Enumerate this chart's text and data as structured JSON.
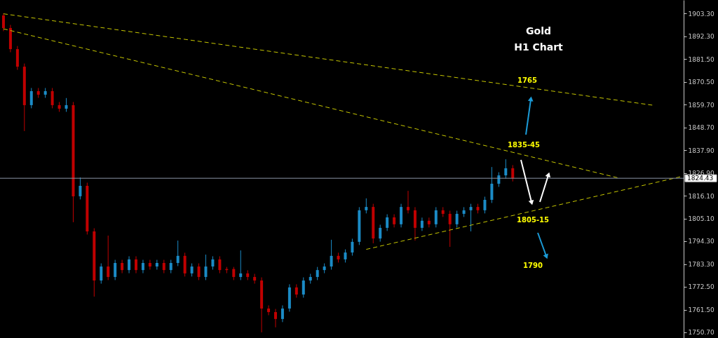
{
  "chart_data": {
    "type": "candlestick",
    "title": "Gold",
    "subtitle": "H1 Chart",
    "categories": [
      null,
      null,
      null,
      null,
      null,
      null,
      null,
      null,
      null,
      null,
      null,
      null,
      null,
      null,
      null,
      null,
      null,
      null,
      null,
      null,
      null,
      null,
      null,
      null,
      null,
      null,
      null,
      null,
      null,
      null,
      null,
      null,
      null,
      null,
      null,
      null,
      null,
      null,
      null,
      null,
      null,
      null,
      null,
      null,
      null,
      null,
      null,
      null,
      null,
      null,
      null,
      null,
      null,
      null,
      null,
      null,
      null,
      null,
      null,
      null,
      null,
      null,
      null,
      null,
      null,
      null,
      null,
      null,
      null,
      null,
      null,
      null,
      null,
      null,
      null,
      null,
      null,
      null,
      null,
      null,
      null,
      null,
      null,
      null,
      null,
      null,
      null,
      null,
      null,
      null,
      null,
      null,
      null,
      null,
      null,
      null,
      null,
      null
    ],
    "ohlc": [
      [
        1902.3,
        1903.3,
        1894.8,
        1896.3
      ],
      [
        1896.3,
        1897.8,
        1884.7,
        1886.2
      ],
      [
        1886.2,
        1887.7,
        1876.3,
        1877.8
      ],
      [
        1877.8,
        1879.3,
        1847.0,
        1859.4
      ],
      [
        1859.4,
        1867.6,
        1857.9,
        1866.1
      ],
      [
        1866.1,
        1867.6,
        1862.9,
        1864.4
      ],
      [
        1864.4,
        1867.6,
        1862.9,
        1866.1
      ],
      [
        1866.1,
        1867.6,
        1857.9,
        1859.4
      ],
      [
        1859.4,
        1860.9,
        1856.2,
        1857.7
      ],
      [
        1857.7,
        1862.8,
        1856.2,
        1859.4
      ],
      [
        1859.4,
        1860.9,
        1803.4,
        1815.8
      ],
      [
        1815.8,
        1824.8,
        1814.3,
        1820.8
      ],
      [
        1820.8,
        1822.3,
        1797.5,
        1799.0
      ],
      [
        1799.0,
        1800.5,
        1767.8,
        1775.5
      ],
      [
        1775.5,
        1783.7,
        1774.0,
        1782.2
      ],
      [
        1782.2,
        1797.0,
        1775.7,
        1777.2
      ],
      [
        1777.2,
        1785.4,
        1775.7,
        1783.9
      ],
      [
        1783.9,
        1785.4,
        1779.0,
        1780.5
      ],
      [
        1780.5,
        1787.1,
        1779.0,
        1785.6
      ],
      [
        1785.6,
        1787.1,
        1779.0,
        1780.5
      ],
      [
        1780.5,
        1785.4,
        1779.0,
        1783.9
      ],
      [
        1783.9,
        1785.4,
        1780.7,
        1782.2
      ],
      [
        1782.2,
        1785.4,
        1780.7,
        1783.9
      ],
      [
        1783.9,
        1785.4,
        1779.0,
        1780.5
      ],
      [
        1780.5,
        1785.4,
        1779.0,
        1783.9
      ],
      [
        1783.9,
        1794.6,
        1782.4,
        1787.3
      ],
      [
        1787.3,
        1788.8,
        1777.4,
        1778.9
      ],
      [
        1778.9,
        1783.7,
        1777.4,
        1782.2
      ],
      [
        1782.2,
        1783.7,
        1775.7,
        1777.2
      ],
      [
        1777.2,
        1787.9,
        1775.7,
        1782.2
      ],
      [
        1782.2,
        1787.1,
        1780.7,
        1785.6
      ],
      [
        1785.6,
        1787.1,
        1779.0,
        1780.5
      ],
      [
        1780.5,
        1782.0,
        1779.0,
        1781.0
      ],
      [
        1781.0,
        1782.0,
        1775.7,
        1777.2
      ],
      [
        1777.2,
        1789.9,
        1775.7,
        1778.9
      ],
      [
        1778.9,
        1780.4,
        1775.7,
        1777.2
      ],
      [
        1777.2,
        1778.7,
        1774.0,
        1775.5
      ],
      [
        1775.5,
        1777.0,
        1750.7,
        1762.1
      ],
      [
        1762.1,
        1763.6,
        1758.9,
        1760.4
      ],
      [
        1760.4,
        1761.9,
        1753.1,
        1757.1
      ],
      [
        1757.1,
        1763.6,
        1755.6,
        1762.1
      ],
      [
        1762.1,
        1773.7,
        1760.6,
        1772.2
      ],
      [
        1772.2,
        1773.7,
        1767.3,
        1768.8
      ],
      [
        1768.8,
        1777.0,
        1767.3,
        1775.5
      ],
      [
        1775.5,
        1778.7,
        1774.0,
        1777.2
      ],
      [
        1777.2,
        1782.0,
        1775.7,
        1780.5
      ],
      [
        1780.5,
        1783.7,
        1779.0,
        1782.2
      ],
      [
        1782.2,
        1795.0,
        1780.7,
        1787.3
      ],
      [
        1787.3,
        1788.8,
        1784.1,
        1785.6
      ],
      [
        1785.6,
        1790.4,
        1784.1,
        1788.9
      ],
      [
        1788.9,
        1795.5,
        1787.4,
        1794.0
      ],
      [
        1794.0,
        1810.6,
        1792.5,
        1809.1
      ],
      [
        1809.1,
        1814.8,
        1807.6,
        1810.7
      ],
      [
        1810.7,
        1812.2,
        1793.3,
        1795.6
      ],
      [
        1795.6,
        1802.2,
        1794.1,
        1800.7
      ],
      [
        1800.7,
        1807.2,
        1799.2,
        1805.7
      ],
      [
        1805.7,
        1807.2,
        1800.9,
        1802.4
      ],
      [
        1802.4,
        1812.2,
        1800.9,
        1810.7
      ],
      [
        1810.7,
        1818.4,
        1807.6,
        1809.1
      ],
      [
        1809.1,
        1810.6,
        1794.6,
        1800.7
      ],
      [
        1800.7,
        1805.6,
        1799.2,
        1804.1
      ],
      [
        1804.1,
        1805.6,
        1800.9,
        1802.4
      ],
      [
        1802.4,
        1810.6,
        1800.9,
        1809.1
      ],
      [
        1809.1,
        1810.6,
        1805.9,
        1807.4
      ],
      [
        1807.4,
        1808.9,
        1791.6,
        1802.4
      ],
      [
        1802.4,
        1808.9,
        1800.9,
        1807.4
      ],
      [
        1807.4,
        1810.6,
        1805.9,
        1809.1
      ],
      [
        1809.1,
        1812.2,
        1799.0,
        1810.7
      ],
      [
        1810.7,
        1812.2,
        1807.6,
        1809.1
      ],
      [
        1809.1,
        1815.6,
        1807.6,
        1814.1
      ],
      [
        1814.1,
        1829.8,
        1812.6,
        1821.8
      ],
      [
        1821.8,
        1827.3,
        1820.3,
        1825.8
      ],
      [
        1825.8,
        1833.5,
        1824.3,
        1829.2
      ],
      [
        1829.2,
        1830.7,
        1822.9,
        1824.4
      ],
      null,
      null,
      null,
      null,
      null,
      null,
      null,
      null,
      null,
      null,
      null,
      null,
      null,
      null,
      null,
      null,
      null,
      null,
      null,
      null,
      null,
      null,
      null,
      null
    ],
    "colors": [
      "#c00000",
      "#c00000",
      "#c00000",
      "#c00000",
      "#1b8bc6",
      "#c00000",
      "#1b8bc6",
      "#c00000",
      "#c00000",
      "#1b8bc6",
      "#c00000",
      "#1b8bc6",
      "#c00000",
      "#c00000",
      "#1b8bc6",
      "#c00000",
      "#1b8bc6",
      "#c00000",
      "#1b8bc6",
      "#c00000",
      "#1b8bc6",
      "#c00000",
      "#1b8bc6",
      "#c00000",
      "#1b8bc6",
      "#1b8bc6",
      "#c00000",
      "#1b8bc6",
      "#c00000",
      "#1b8bc6",
      "#1b8bc6",
      "#c00000",
      "#c00000",
      "#c00000",
      "#1b8bc6",
      "#c00000",
      "#c00000",
      "#c00000",
      "#c00000",
      "#c00000",
      "#1b8bc6",
      "#1b8bc6",
      "#c00000",
      "#1b8bc6",
      "#1b8bc6",
      "#1b8bc6",
      "#1b8bc6",
      "#1b8bc6",
      "#c00000",
      "#1b8bc6",
      "#1b8bc6",
      "#1b8bc6",
      "#1b8bc6",
      "#c00000",
      "#1b8bc6",
      "#1b8bc6",
      "#c00000",
      "#1b8bc6",
      "#c00000",
      "#c00000",
      "#1b8bc6",
      "#c00000",
      "#1b8bc6",
      "#c00000",
      "#c00000",
      "#1b8bc6",
      "#1b8bc6",
      "#1b8bc6",
      "#c00000",
      "#1b8bc6",
      "#1b8bc6",
      "#1b8bc6",
      "#1b8bc6",
      "#c00000",
      null,
      null,
      null,
      null,
      null,
      null,
      null,
      null,
      null,
      null,
      null,
      null,
      null,
      null,
      null,
      null,
      null,
      null,
      null,
      null,
      null,
      null,
      null,
      null
    ],
    "series": [
      {
        "type": "line",
        "color": "#c8c800",
        "line_style": "dashed",
        "values": [
          1903.1,
          null,
          null,
          null,
          null,
          null,
          null,
          null,
          null,
          null,
          null,
          null,
          null,
          null,
          null,
          null,
          null,
          null,
          null,
          null,
          null,
          null,
          null,
          null,
          null,
          null,
          null,
          null,
          null,
          null,
          null,
          null,
          null,
          null,
          null,
          null,
          null,
          null,
          null,
          null,
          null,
          null,
          null,
          null,
          null,
          null,
          null,
          null,
          null,
          null,
          null,
          null,
          null,
          null,
          null,
          null,
          null,
          null,
          null,
          null,
          null,
          null,
          null,
          null,
          null,
          null,
          null,
          null,
          null,
          null,
          null,
          null,
          null,
          null,
          null,
          null,
          null,
          null,
          null,
          null,
          null,
          null,
          null,
          null,
          null,
          null,
          null,
          null,
          null,
          null,
          null,
          null,
          null,
          1859.4,
          null,
          null,
          null,
          null
        ]
      },
      {
        "type": "line",
        "color": "#c8c800",
        "line_style": "dashed",
        "values": [
          1895.9,
          null,
          null,
          null,
          null,
          null,
          null,
          null,
          null,
          null,
          null,
          null,
          null,
          null,
          null,
          null,
          null,
          null,
          null,
          null,
          null,
          null,
          null,
          null,
          null,
          null,
          null,
          null,
          null,
          null,
          null,
          null,
          null,
          null,
          null,
          null,
          null,
          null,
          null,
          null,
          null,
          null,
          null,
          null,
          null,
          null,
          null,
          null,
          null,
          null,
          null,
          null,
          null,
          null,
          null,
          null,
          null,
          null,
          null,
          null,
          null,
          null,
          null,
          null,
          null,
          null,
          null,
          null,
          null,
          null,
          null,
          null,
          null,
          null,
          null,
          null,
          null,
          null,
          null,
          null,
          null,
          null,
          null,
          null,
          null,
          null,
          null,
          null,
          1824.7,
          null,
          null,
          null,
          null,
          null,
          null,
          null,
          null,
          null
        ]
      },
      {
        "type": "line",
        "color": "#c8c800",
        "line_style": "dashed",
        "values": [
          null,
          null,
          null,
          null,
          null,
          null,
          null,
          null,
          null,
          null,
          null,
          null,
          null,
          null,
          null,
          null,
          null,
          null,
          null,
          null,
          null,
          null,
          null,
          null,
          null,
          null,
          null,
          null,
          null,
          null,
          null,
          null,
          null,
          null,
          null,
          null,
          null,
          null,
          null,
          null,
          null,
          null,
          null,
          null,
          null,
          null,
          null,
          null,
          null,
          null,
          null,
          null,
          1790.4,
          null,
          null,
          null,
          null,
          null,
          null,
          null,
          null,
          null,
          null,
          null,
          null,
          null,
          null,
          null,
          null,
          null,
          null,
          null,
          null,
          null,
          null,
          null,
          null,
          null,
          null,
          null,
          null,
          null,
          null,
          null,
          null,
          null,
          null,
          null,
          null,
          null,
          null,
          null,
          null,
          null,
          null,
          null,
          null,
          1825.1
        ]
      }
    ],
    "ylim": [
      1748.0,
      1909.7
    ],
    "yticks": [
      {
        "value": 1903.3,
        "label": "1903.30"
      },
      {
        "value": 1892.3,
        "label": "1892.30"
      },
      {
        "value": 1881.5,
        "label": "1881.50"
      },
      {
        "value": 1870.5,
        "label": "1870.50"
      },
      {
        "value": 1859.7,
        "label": "1859.70"
      },
      {
        "value": 1848.7,
        "label": "1848.70"
      },
      {
        "value": 1837.9,
        "label": "1837.90"
      },
      {
        "value": 1826.9,
        "label": "1826.90"
      },
      {
        "value": 1816.1,
        "label": "1816.10"
      },
      {
        "value": 1805.1,
        "label": "1805.10"
      },
      {
        "value": 1794.3,
        "label": "1794.30"
      },
      {
        "value": 1783.3,
        "label": "1783.30"
      },
      {
        "value": 1772.5,
        "label": "1772.50"
      },
      {
        "value": 1761.5,
        "label": "1761.50"
      },
      {
        "value": 1750.7,
        "label": "1750.70"
      }
    ],
    "ref_lines": [
      {
        "axis": "y",
        "value": 1824.43,
        "label": "1824.43",
        "color": "#8a94a6"
      }
    ],
    "annotations": [
      "1765",
      "1835-45",
      "1805-15",
      "1790"
    ],
    "tick_labels": "y",
    "grid": false
  }
}
